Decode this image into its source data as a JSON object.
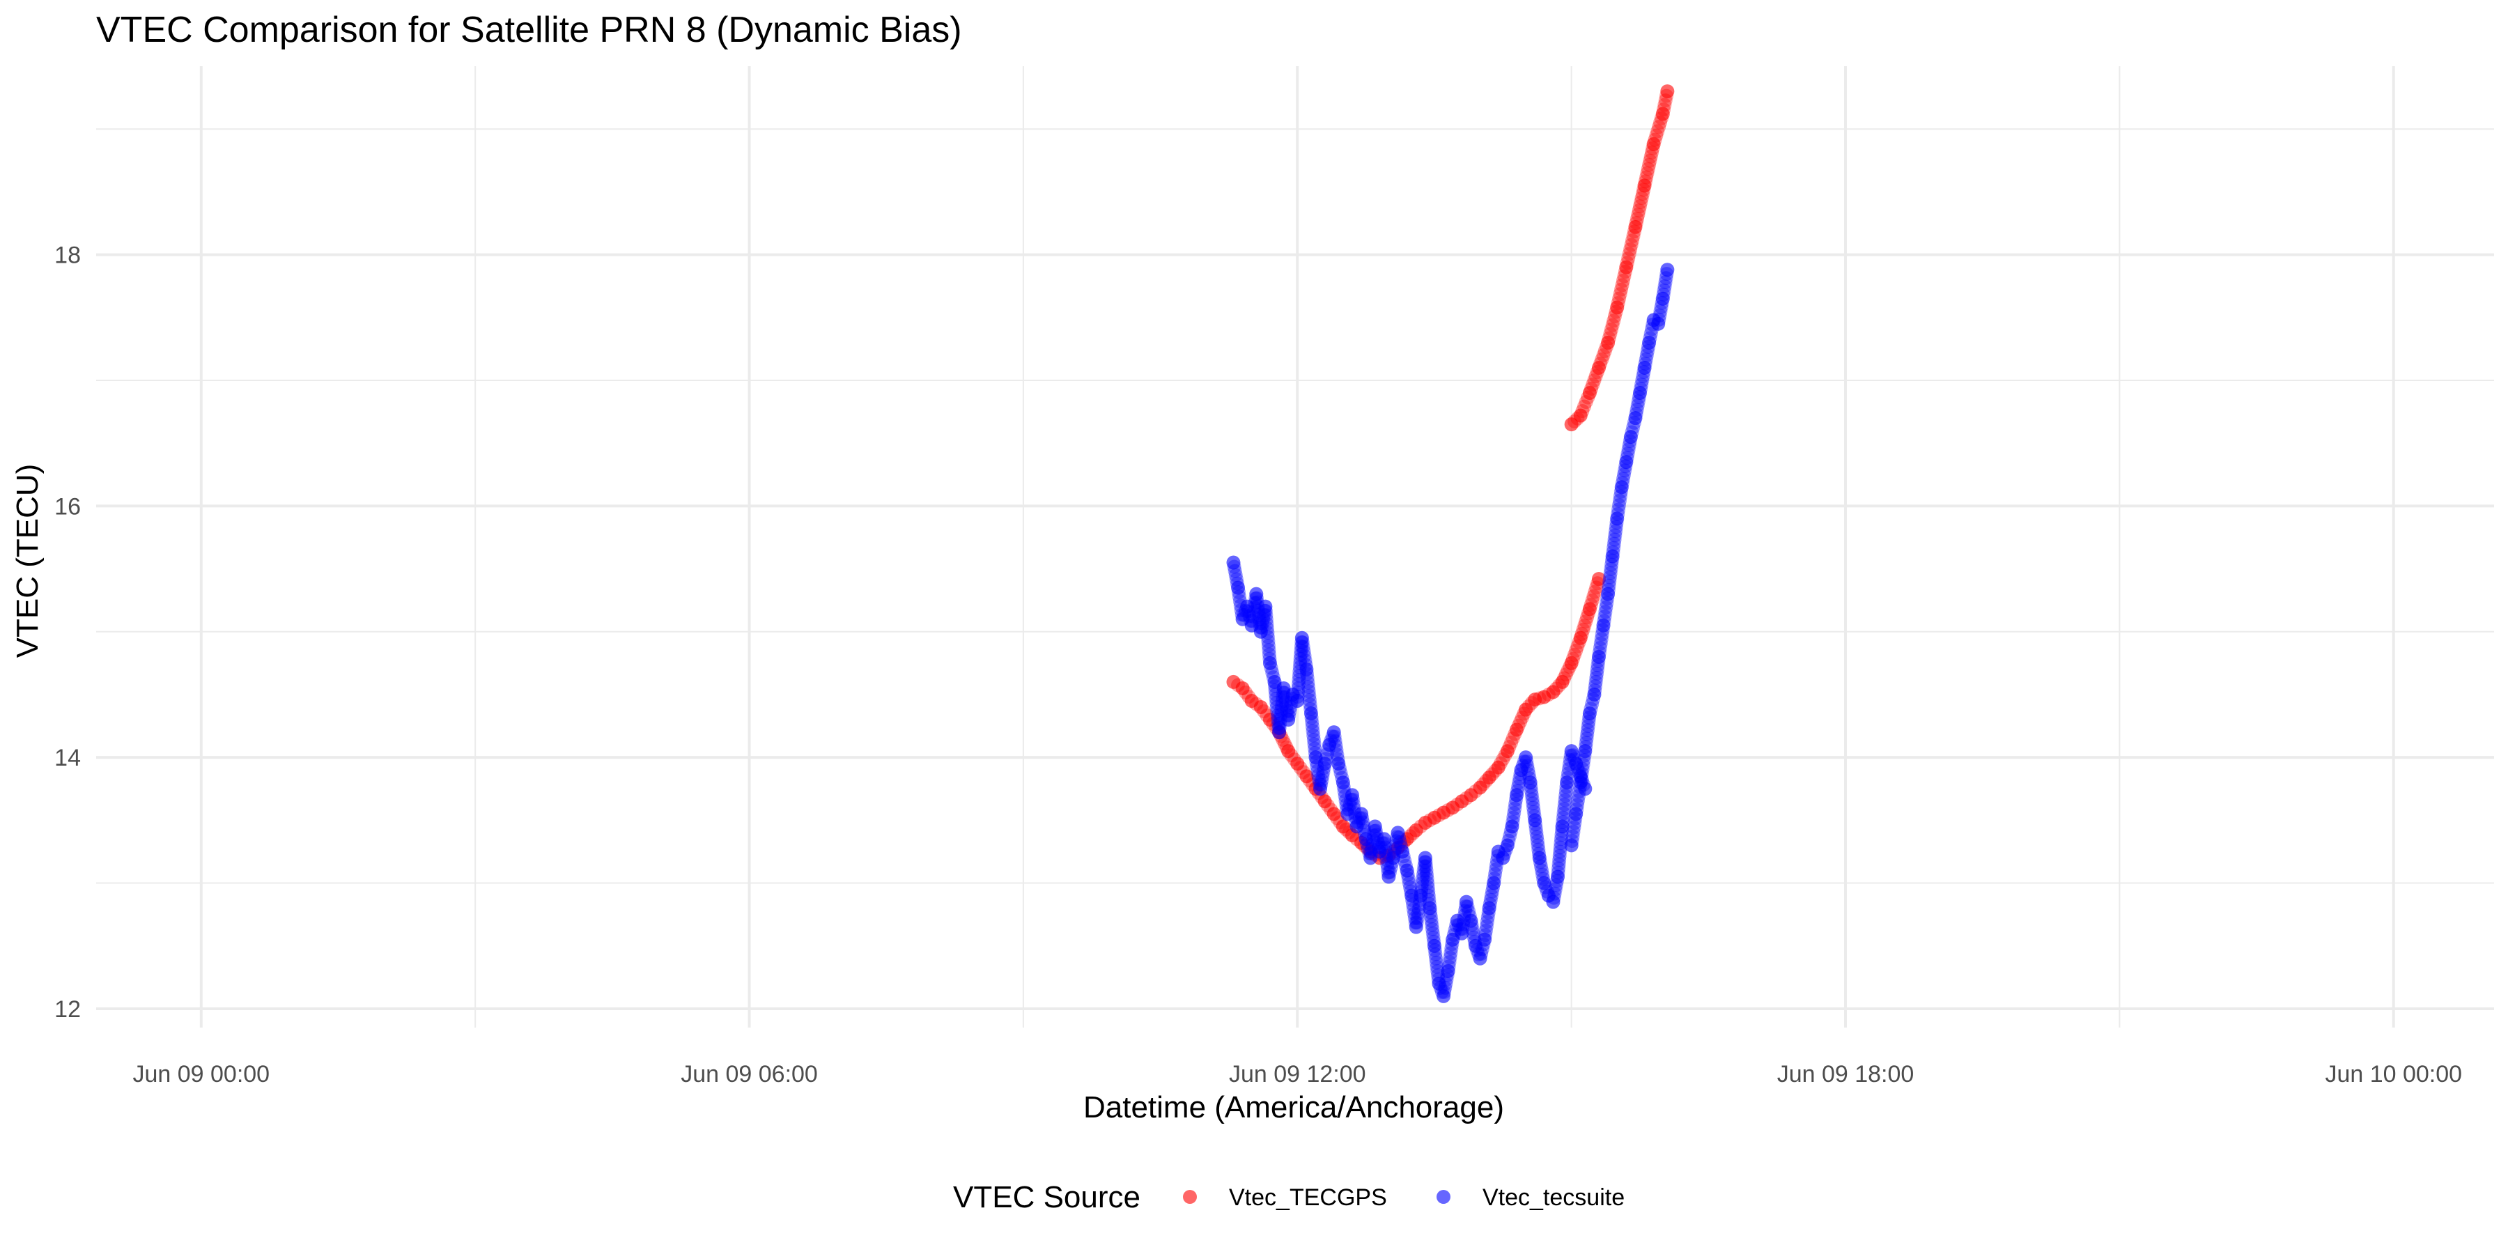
{
  "chart_data": {
    "type": "scatter",
    "title": "VTEC Comparison for Satellite PRN 8 (Dynamic Bias)",
    "xlabel": "Datetime (America/Anchorage)",
    "ylabel": "VTEC (TECU)",
    "x_unit": "hours since Jun 09 00:00 (America/Anchorage)",
    "xlim": [
      -1.15,
      25.1
    ],
    "ylim": [
      11.85,
      19.5
    ],
    "x_ticks": [
      {
        "value": 0,
        "label": "Jun 09 00:00"
      },
      {
        "value": 6,
        "label": "Jun 09 06:00"
      },
      {
        "value": 12,
        "label": "Jun 09 12:00"
      },
      {
        "value": 18,
        "label": "Jun 09 18:00"
      },
      {
        "value": 24,
        "label": "Jun 10 00:00"
      }
    ],
    "x_minor": [
      3,
      9,
      15,
      21
    ],
    "y_ticks": [
      {
        "value": 12,
        "label": "12"
      },
      {
        "value": 14,
        "label": "14"
      },
      {
        "value": 16,
        "label": "16"
      },
      {
        "value": 18,
        "label": "18"
      }
    ],
    "y_minor": [
      13,
      15,
      17,
      19
    ],
    "grid": true,
    "legend": {
      "title": "VTEC Source",
      "position": "bottom"
    },
    "series": [
      {
        "name": "Vtec_TECGPS",
        "color": "#ff0000",
        "opacity": 0.6,
        "points": [
          [
            11.3,
            14.6
          ],
          [
            11.4,
            14.55
          ],
          [
            11.5,
            14.45
          ],
          [
            11.6,
            14.4
          ],
          [
            11.7,
            14.3
          ],
          [
            11.8,
            14.2
          ],
          [
            11.9,
            14.05
          ],
          [
            12.0,
            13.95
          ],
          [
            12.1,
            13.85
          ],
          [
            12.2,
            13.75
          ],
          [
            12.3,
            13.65
          ],
          [
            12.4,
            13.55
          ],
          [
            12.5,
            13.45
          ],
          [
            12.6,
            13.38
          ],
          [
            12.7,
            13.32
          ],
          [
            12.8,
            13.25
          ],
          [
            12.9,
            13.2
          ],
          [
            13.0,
            13.22
          ],
          [
            13.1,
            13.28
          ],
          [
            13.2,
            13.35
          ],
          [
            13.3,
            13.42
          ],
          [
            13.4,
            13.48
          ],
          [
            13.5,
            13.52
          ],
          [
            13.6,
            13.56
          ],
          [
            13.7,
            13.6
          ],
          [
            13.8,
            13.65
          ],
          [
            13.9,
            13.7
          ],
          [
            14.0,
            13.76
          ],
          [
            14.1,
            13.84
          ],
          [
            14.2,
            13.92
          ],
          [
            14.3,
            14.05
          ],
          [
            14.4,
            14.22
          ],
          [
            14.5,
            14.38
          ],
          [
            14.6,
            14.46
          ],
          [
            14.7,
            14.48
          ],
          [
            14.8,
            14.52
          ],
          [
            14.9,
            14.6
          ],
          [
            15.0,
            14.75
          ],
          [
            15.1,
            14.95
          ],
          [
            15.2,
            15.18
          ],
          [
            15.3,
            15.42
          ],
          [
            15.0,
            16.65
          ],
          [
            15.1,
            16.72
          ],
          [
            15.2,
            16.9
          ],
          [
            15.3,
            17.1
          ],
          [
            15.4,
            17.3
          ],
          [
            15.5,
            17.58
          ],
          [
            15.6,
            17.9
          ],
          [
            15.7,
            18.22
          ],
          [
            15.8,
            18.55
          ],
          [
            15.9,
            18.88
          ],
          [
            16.0,
            19.12
          ],
          [
            16.05,
            19.3
          ]
        ]
      },
      {
        "name": "Vtec_tecsuite",
        "color": "#0000ff",
        "opacity": 0.6,
        "points": [
          [
            11.3,
            15.55
          ],
          [
            11.35,
            15.35
          ],
          [
            11.4,
            15.1
          ],
          [
            11.45,
            15.2
          ],
          [
            11.5,
            15.05
          ],
          [
            11.55,
            15.3
          ],
          [
            11.6,
            15.0
          ],
          [
            11.65,
            15.2
          ],
          [
            11.7,
            14.75
          ],
          [
            11.75,
            14.6
          ],
          [
            11.8,
            14.2
          ],
          [
            11.85,
            14.55
          ],
          [
            11.9,
            14.3
          ],
          [
            11.95,
            14.5
          ],
          [
            12.0,
            14.45
          ],
          [
            12.05,
            14.95
          ],
          [
            12.1,
            14.7
          ],
          [
            12.15,
            14.35
          ],
          [
            12.2,
            14.0
          ],
          [
            12.25,
            13.75
          ],
          [
            12.3,
            13.95
          ],
          [
            12.35,
            14.1
          ],
          [
            12.4,
            14.2
          ],
          [
            12.45,
            13.95
          ],
          [
            12.5,
            13.8
          ],
          [
            12.55,
            13.55
          ],
          [
            12.6,
            13.7
          ],
          [
            12.65,
            13.45
          ],
          [
            12.7,
            13.55
          ],
          [
            12.75,
            13.35
          ],
          [
            12.8,
            13.2
          ],
          [
            12.85,
            13.45
          ],
          [
            12.9,
            13.25
          ],
          [
            12.95,
            13.35
          ],
          [
            13.0,
            13.05
          ],
          [
            13.05,
            13.2
          ],
          [
            13.1,
            13.4
          ],
          [
            13.15,
            13.25
          ],
          [
            13.2,
            13.1
          ],
          [
            13.25,
            12.9
          ],
          [
            13.3,
            12.65
          ],
          [
            13.35,
            12.9
          ],
          [
            13.4,
            13.2
          ],
          [
            13.45,
            12.8
          ],
          [
            13.5,
            12.5
          ],
          [
            13.55,
            12.2
          ],
          [
            13.6,
            12.1
          ],
          [
            13.65,
            12.3
          ],
          [
            13.7,
            12.55
          ],
          [
            13.75,
            12.7
          ],
          [
            13.8,
            12.6
          ],
          [
            13.85,
            12.85
          ],
          [
            13.9,
            12.7
          ],
          [
            13.95,
            12.5
          ],
          [
            14.0,
            12.4
          ],
          [
            14.05,
            12.55
          ],
          [
            14.1,
            12.8
          ],
          [
            14.15,
            13.0
          ],
          [
            14.2,
            13.25
          ],
          [
            14.25,
            13.2
          ],
          [
            14.3,
            13.3
          ],
          [
            14.35,
            13.45
          ],
          [
            14.4,
            13.7
          ],
          [
            14.45,
            13.9
          ],
          [
            14.5,
            14.0
          ],
          [
            14.55,
            13.8
          ],
          [
            14.6,
            13.5
          ],
          [
            14.65,
            13.2
          ],
          [
            14.7,
            13.0
          ],
          [
            14.75,
            12.9
          ],
          [
            14.8,
            12.85
          ],
          [
            14.85,
            13.05
          ],
          [
            14.9,
            13.45
          ],
          [
            14.95,
            13.8
          ],
          [
            15.0,
            14.05
          ],
          [
            15.05,
            13.95
          ],
          [
            15.1,
            13.85
          ],
          [
            15.15,
            13.75
          ],
          [
            15.0,
            13.3
          ],
          [
            15.05,
            13.55
          ],
          [
            15.1,
            13.8
          ],
          [
            15.15,
            14.05
          ],
          [
            15.2,
            14.35
          ],
          [
            15.25,
            14.5
          ],
          [
            15.3,
            14.8
          ],
          [
            15.35,
            15.05
          ],
          [
            15.4,
            15.3
          ],
          [
            15.45,
            15.6
          ],
          [
            15.5,
            15.9
          ],
          [
            15.55,
            16.15
          ],
          [
            15.6,
            16.35
          ],
          [
            15.65,
            16.55
          ],
          [
            15.7,
            16.7
          ],
          [
            15.75,
            16.9
          ],
          [
            15.8,
            17.1
          ],
          [
            15.85,
            17.3
          ],
          [
            15.9,
            17.48
          ],
          [
            15.95,
            17.45
          ],
          [
            16.0,
            17.65
          ],
          [
            16.05,
            17.88
          ]
        ]
      }
    ]
  }
}
